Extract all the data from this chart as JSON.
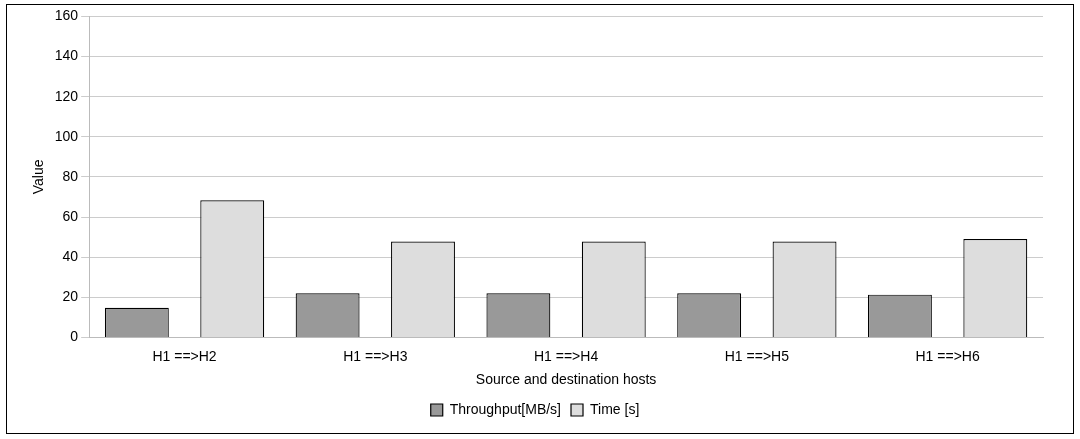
{
  "chart_data": {
    "type": "bar",
    "xlabel": "Source and destination hosts",
    "ylabel": "Value",
    "categories": [
      "H1 ==>H2",
      "H1 ==>H3",
      "H1 ==>H4",
      "H1 ==>H5",
      "H1 ==>H6"
    ],
    "series": [
      {
        "name": "Throughput[MB/s]",
        "color": "#999999",
        "values": [
          14.8,
          22,
          22,
          22,
          21.3
        ]
      },
      {
        "name": "Time [s]",
        "color": "#dddddd",
        "values": [
          68.3,
          47.8,
          47.8,
          47.8,
          49
        ]
      }
    ],
    "ylim": [
      0,
      160
    ],
    "yticks": [
      0,
      20,
      40,
      60,
      80,
      100,
      120,
      140,
      160
    ],
    "grid": "y",
    "legend": "bottom"
  }
}
